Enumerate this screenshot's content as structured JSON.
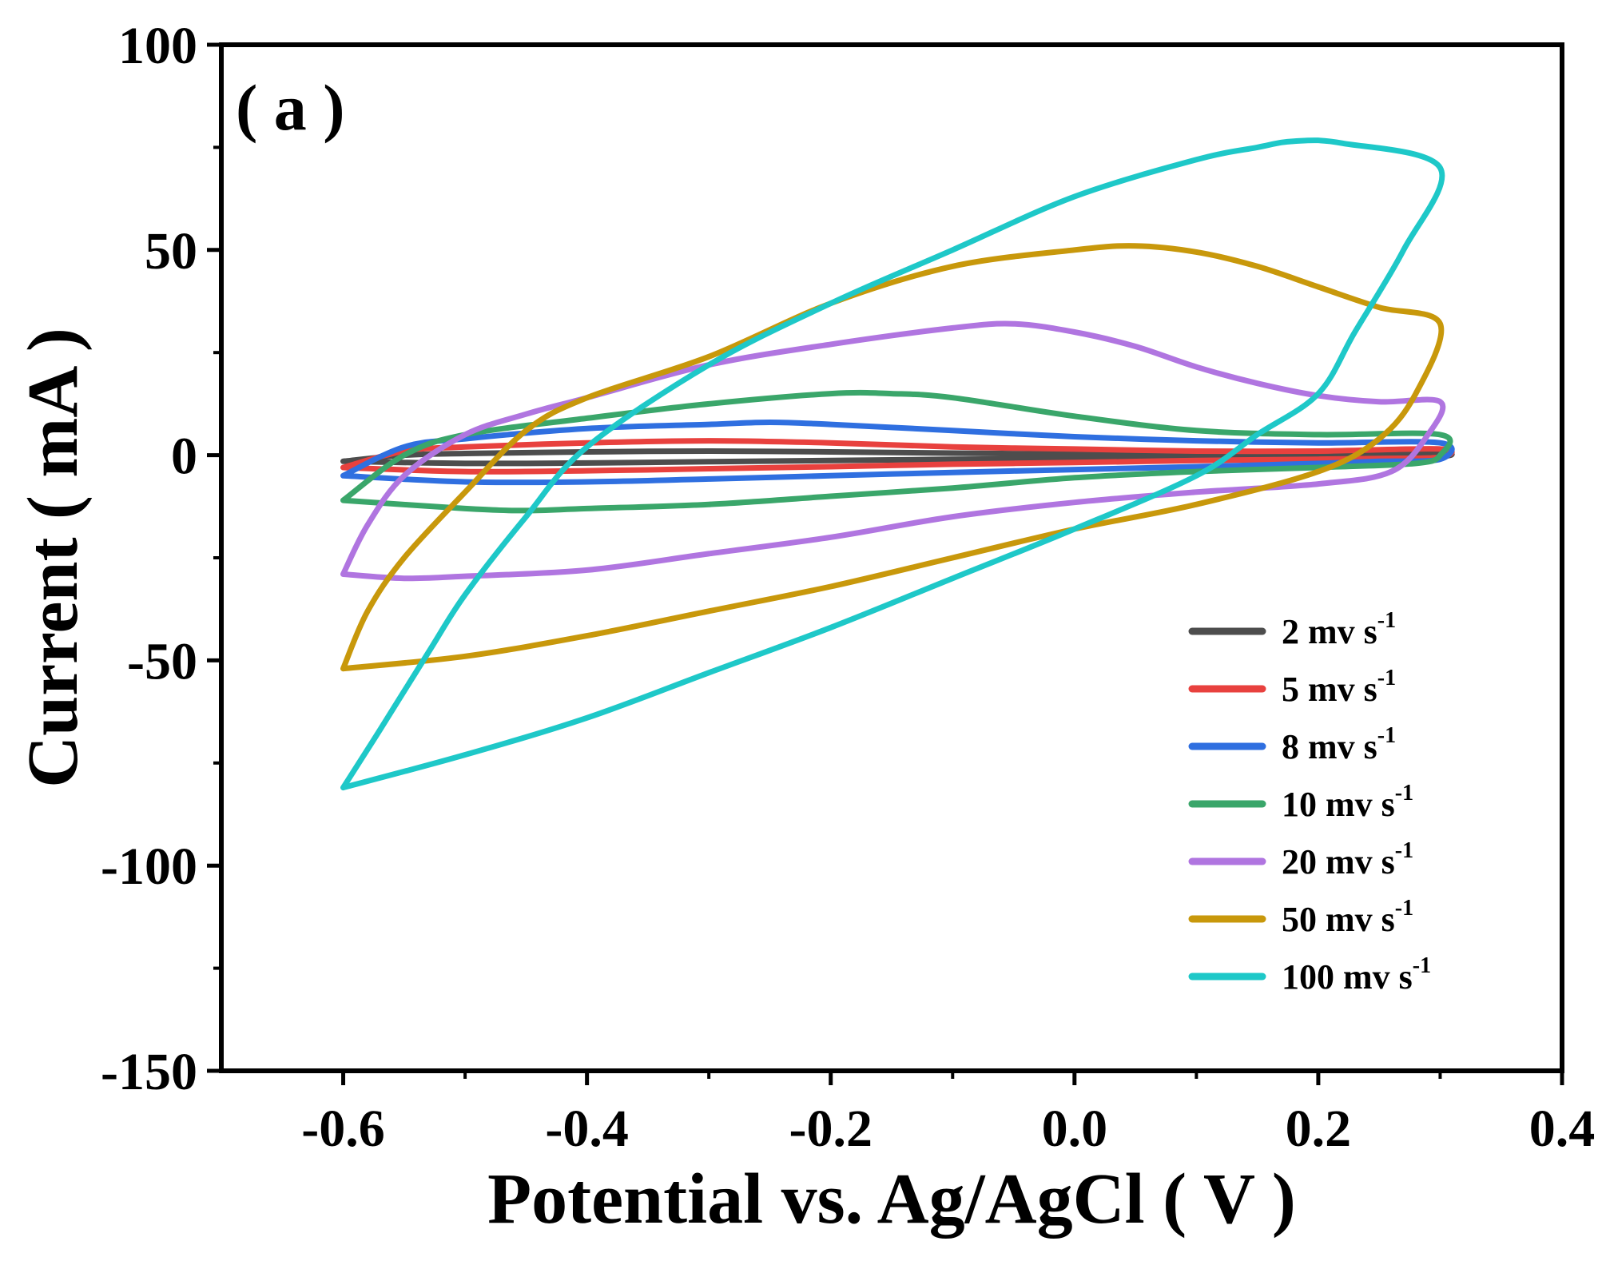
{
  "chart_data": {
    "type": "line",
    "panel_label": "( a )",
    "xlabel": "Potential vs. Ag/AgCl ( V )",
    "ylabel": "Current ( mA )",
    "xlim": [
      -0.7,
      0.4
    ],
    "ylim": [
      -150,
      100
    ],
    "xticks": [
      -0.6,
      -0.4,
      -0.2,
      0.0,
      0.2,
      0.4
    ],
    "xtick_labels": [
      "-0.6",
      "-0.4",
      "-0.2",
      "0.0",
      "0.2",
      "0.4"
    ],
    "yticks": [
      -150,
      -100,
      -50,
      0,
      50,
      100
    ],
    "ytick_labels": [
      "-150",
      "-100",
      "-50",
      "0",
      "50",
      "100"
    ],
    "grid": false,
    "legend_position": "bottom-right",
    "series": [
      {
        "name": "2 mv s-1",
        "label_main": "2 mv s",
        "label_sup": "-1",
        "color": "#4d4d4d",
        "points": [
          [
            -0.6,
            -1.5
          ],
          [
            -0.55,
            0.0
          ],
          [
            -0.5,
            0.4
          ],
          [
            -0.4,
            0.8
          ],
          [
            -0.3,
            1.0
          ],
          [
            -0.2,
            0.8
          ],
          [
            -0.1,
            0.5
          ],
          [
            0.0,
            0.3
          ],
          [
            0.1,
            0.2
          ],
          [
            0.2,
            0.2
          ],
          [
            0.3,
            0.5
          ],
          [
            0.3,
            -0.3
          ],
          [
            0.25,
            -0.3
          ],
          [
            0.2,
            -0.5
          ],
          [
            0.1,
            -0.6
          ],
          [
            0.0,
            -0.8
          ],
          [
            -0.1,
            -1.0
          ],
          [
            -0.2,
            -1.3
          ],
          [
            -0.3,
            -1.6
          ],
          [
            -0.4,
            -1.9
          ],
          [
            -0.5,
            -2.0
          ],
          [
            -0.6,
            -1.5
          ]
        ]
      },
      {
        "name": "5 mv s-1",
        "label_main": "5 mv s",
        "label_sup": "-1",
        "color": "#e8413e",
        "points": [
          [
            -0.6,
            -3.0
          ],
          [
            -0.55,
            1.0
          ],
          [
            -0.5,
            2.0
          ],
          [
            -0.4,
            3.0
          ],
          [
            -0.3,
            3.5
          ],
          [
            -0.2,
            3.0
          ],
          [
            -0.1,
            2.0
          ],
          [
            0.0,
            1.5
          ],
          [
            0.1,
            1.0
          ],
          [
            0.2,
            1.0
          ],
          [
            0.3,
            1.5
          ],
          [
            0.3,
            -0.5
          ],
          [
            0.25,
            -0.8
          ],
          [
            0.2,
            -1.0
          ],
          [
            0.1,
            -1.3
          ],
          [
            0.0,
            -1.8
          ],
          [
            -0.1,
            -2.2
          ],
          [
            -0.2,
            -2.8
          ],
          [
            -0.3,
            -3.3
          ],
          [
            -0.4,
            -3.8
          ],
          [
            -0.5,
            -4.0
          ],
          [
            -0.6,
            -3.0
          ]
        ]
      },
      {
        "name": "8 mv s-1",
        "label_main": "8 mv s",
        "label_sup": "-1",
        "color": "#2f6fe0",
        "points": [
          [
            -0.6,
            -5.0
          ],
          [
            -0.55,
            2.0
          ],
          [
            -0.5,
            4.0
          ],
          [
            -0.4,
            6.5
          ],
          [
            -0.3,
            7.5
          ],
          [
            -0.25,
            8.0
          ],
          [
            -0.2,
            7.5
          ],
          [
            -0.1,
            6.0
          ],
          [
            0.0,
            4.5
          ],
          [
            0.1,
            3.5
          ],
          [
            0.2,
            3.0
          ],
          [
            0.3,
            3.0
          ],
          [
            0.3,
            -1.0
          ],
          [
            0.25,
            -1.5
          ],
          [
            0.2,
            -2.0
          ],
          [
            0.1,
            -2.8
          ],
          [
            0.0,
            -3.5
          ],
          [
            -0.1,
            -4.2
          ],
          [
            -0.2,
            -5.0
          ],
          [
            -0.3,
            -5.8
          ],
          [
            -0.4,
            -6.5
          ],
          [
            -0.5,
            -6.5
          ],
          [
            -0.6,
            -5.0
          ]
        ]
      },
      {
        "name": "10 mv s-1",
        "label_main": "10 mv s",
        "label_sup": "-1",
        "color": "#3aa66a",
        "points": [
          [
            -0.6,
            -11.0
          ],
          [
            -0.55,
            0.0
          ],
          [
            -0.5,
            5.0
          ],
          [
            -0.4,
            9.0
          ],
          [
            -0.3,
            12.5
          ],
          [
            -0.2,
            15.0
          ],
          [
            -0.15,
            15.0
          ],
          [
            -0.1,
            14.0
          ],
          [
            0.0,
            9.5
          ],
          [
            0.1,
            6.0
          ],
          [
            0.2,
            5.0
          ],
          [
            0.3,
            5.0
          ],
          [
            0.3,
            0.0
          ],
          [
            0.28,
            -2.0
          ],
          [
            0.2,
            -3.0
          ],
          [
            0.1,
            -4.0
          ],
          [
            0.0,
            -5.5
          ],
          [
            -0.1,
            -8.0
          ],
          [
            -0.2,
            -10.0
          ],
          [
            -0.3,
            -12.0
          ],
          [
            -0.4,
            -13.0
          ],
          [
            -0.45,
            -13.5
          ],
          [
            -0.5,
            -13.0
          ],
          [
            -0.6,
            -11.0
          ]
        ]
      },
      {
        "name": "20 mv s-1",
        "label_main": "20 mv s",
        "label_sup": "-1",
        "color": "#b075e0",
        "points": [
          [
            -0.6,
            -29.0
          ],
          [
            -0.58,
            -17.0
          ],
          [
            -0.55,
            -5.0
          ],
          [
            -0.5,
            5.0
          ],
          [
            -0.45,
            10.0
          ],
          [
            -0.4,
            14.0
          ],
          [
            -0.3,
            22.0
          ],
          [
            -0.2,
            27.0
          ],
          [
            -0.1,
            31.0
          ],
          [
            -0.05,
            32.0
          ],
          [
            0.0,
            30.0
          ],
          [
            0.05,
            26.5
          ],
          [
            0.1,
            21.5
          ],
          [
            0.15,
            17.5
          ],
          [
            0.2,
            14.5
          ],
          [
            0.25,
            13.0
          ],
          [
            0.3,
            13.0
          ],
          [
            0.29,
            5.0
          ],
          [
            0.26,
            -4.0
          ],
          [
            0.2,
            -7.0
          ],
          [
            0.1,
            -9.0
          ],
          [
            0.0,
            -11.5
          ],
          [
            -0.1,
            -15.0
          ],
          [
            -0.2,
            -20.0
          ],
          [
            -0.3,
            -24.0
          ],
          [
            -0.4,
            -28.0
          ],
          [
            -0.5,
            -29.5
          ],
          [
            -0.55,
            -30.0
          ],
          [
            -0.6,
            -29.0
          ]
        ]
      },
      {
        "name": "50 mv s-1",
        "label_main": "50 mv s",
        "label_sup": "-1",
        "color": "#c8980b",
        "points": [
          [
            -0.6,
            -52.0
          ],
          [
            -0.58,
            -38.0
          ],
          [
            -0.55,
            -25.0
          ],
          [
            -0.5,
            -9.0
          ],
          [
            -0.45,
            6.0
          ],
          [
            -0.4,
            14.0
          ],
          [
            -0.3,
            24.0
          ],
          [
            -0.2,
            37.0
          ],
          [
            -0.1,
            46.0
          ],
          [
            0.0,
            50.0
          ],
          [
            0.05,
            51.0
          ],
          [
            0.1,
            49.5
          ],
          [
            0.15,
            46.0
          ],
          [
            0.2,
            41.0
          ],
          [
            0.25,
            36.0
          ],
          [
            0.3,
            32.0
          ],
          [
            0.28,
            15.0
          ],
          [
            0.25,
            4.0
          ],
          [
            0.2,
            -4.0
          ],
          [
            0.1,
            -12.0
          ],
          [
            0.0,
            -18.0
          ],
          [
            -0.1,
            -25.0
          ],
          [
            -0.2,
            -32.0
          ],
          [
            -0.3,
            -38.0
          ],
          [
            -0.4,
            -44.0
          ],
          [
            -0.5,
            -49.0
          ],
          [
            -0.6,
            -52.0
          ]
        ]
      },
      {
        "name": "100 mv s-1",
        "label_main": "100 mv s",
        "label_sup": "-1",
        "color": "#1ec8c8",
        "points": [
          [
            -0.6,
            -81.0
          ],
          [
            -0.57,
            -67.0
          ],
          [
            -0.53,
            -48.0
          ],
          [
            -0.5,
            -34.0
          ],
          [
            -0.45,
            -15.0
          ],
          [
            -0.4,
            2.0
          ],
          [
            -0.3,
            22.0
          ],
          [
            -0.2,
            37.0
          ],
          [
            -0.1,
            50.0
          ],
          [
            0.0,
            63.0
          ],
          [
            0.1,
            72.0
          ],
          [
            0.15,
            75.0
          ],
          [
            0.18,
            76.5
          ],
          [
            0.22,
            76.0
          ],
          [
            0.3,
            70.0
          ],
          [
            0.27,
            50.0
          ],
          [
            0.23,
            30.0
          ],
          [
            0.2,
            15.0
          ],
          [
            0.15,
            5.0
          ],
          [
            0.1,
            -5.0
          ],
          [
            0.0,
            -18.0
          ],
          [
            -0.1,
            -30.0
          ],
          [
            -0.2,
            -42.0
          ],
          [
            -0.3,
            -53.0
          ],
          [
            -0.4,
            -64.0
          ],
          [
            -0.5,
            -73.0
          ],
          [
            -0.6,
            -81.0
          ]
        ]
      }
    ]
  }
}
